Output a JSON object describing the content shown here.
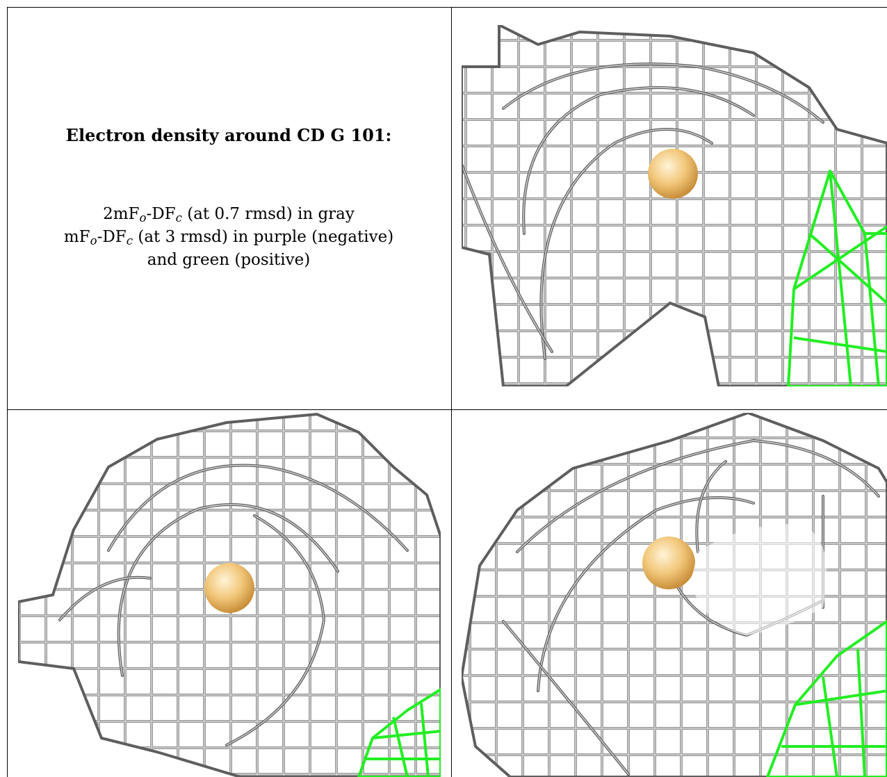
{
  "caption": {
    "title": "Electron density around CD G 101:",
    "line1": {
      "prefix": "2mF",
      "sub1": "o",
      "mid": "-DF",
      "sub2": "c",
      "suffix": " (at 0.7 rmsd) in gray"
    },
    "line2": {
      "prefix": "mF",
      "sub1": "o",
      "mid": "-DF",
      "sub2": "c",
      "suffix": " (at 3 rmsd) in purple (negative)"
    },
    "line3": "and green (positive)"
  },
  "colors": {
    "mesh_gray": "#9a9a9a",
    "mesh_dark": "#5e5e5e",
    "mesh_light": "#d2d2d2",
    "positive_green": "#22ee22",
    "ion_sphere": "#f2c77a",
    "ion_shadow": "#c98f3a"
  },
  "panels": [
    {
      "name": "density-view-top-right",
      "has_green_mesh": true
    },
    {
      "name": "density-view-bottom-left",
      "has_green_mesh": true
    },
    {
      "name": "density-view-bottom-right",
      "has_green_mesh": true
    }
  ]
}
